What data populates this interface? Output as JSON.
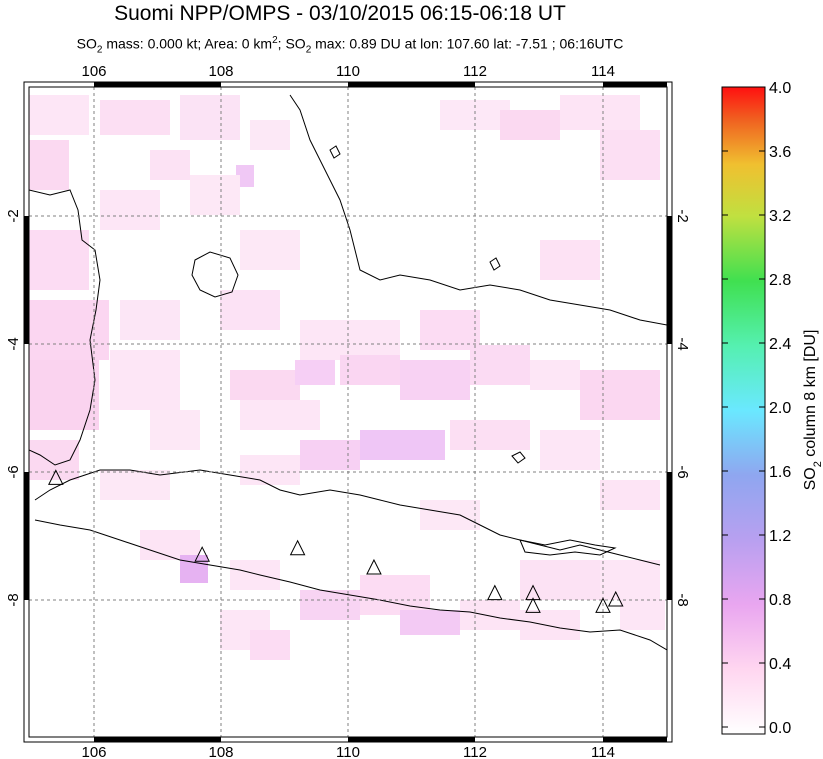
{
  "header": {
    "title": "Suomi NPP/OMPS - 03/10/2015 06:15-06:18 UT",
    "subtitle_parts": {
      "so2_mass_prefix": "SO",
      "so2_mass_sub": "2",
      "mass_text": " mass: 0.000 kt; Area: 0 km",
      "area_sup": "2",
      "sep": "; SO",
      "so2_max_sub": "2",
      "max_text": " max: 0.89 DU at lon: 107.60 lat: -7.51 ; 06:16UTC"
    }
  },
  "map": {
    "lon_range": [
      105.0,
      115.0
    ],
    "lat_range": [
      -10.0,
      0.0
    ],
    "lon_ticks": [
      "106",
      "108",
      "110",
      "112",
      "114"
    ],
    "lat_ticks": [
      "-2",
      "-4",
      "-6",
      "-8"
    ],
    "volcano_icon": "triangle-icon",
    "volcanoes": [
      {
        "lon": 105.4,
        "lat": -6.1
      },
      {
        "lon": 107.7,
        "lat": -7.3
      },
      {
        "lon": 109.2,
        "lat": -7.2
      },
      {
        "lon": 110.4,
        "lat": -7.5
      },
      {
        "lon": 112.3,
        "lat": -7.9
      },
      {
        "lon": 112.9,
        "lat": -7.9
      },
      {
        "lon": 112.9,
        "lat": -8.1
      },
      {
        "lon": 114.0,
        "lat": -8.1
      },
      {
        "lon": 114.2,
        "lat": -8.0
      }
    ]
  },
  "colorbar": {
    "label_main": "SO",
    "label_sub": "2",
    "label_rest": " column 8 km [DU]",
    "ticks": [
      "0.0",
      "0.4",
      "0.8",
      "1.2",
      "1.6",
      "2.0",
      "2.4",
      "2.8",
      "3.2",
      "3.6",
      "4.0"
    ],
    "colors": [
      "#ffffff",
      "#ffd6f0",
      "#e9a6f0",
      "#b8a0f0",
      "#8fa6f0",
      "#6ae8ff",
      "#55f0b0",
      "#40e050",
      "#c0e040",
      "#f0c030",
      "#f06020",
      "#ff1010"
    ]
  }
}
